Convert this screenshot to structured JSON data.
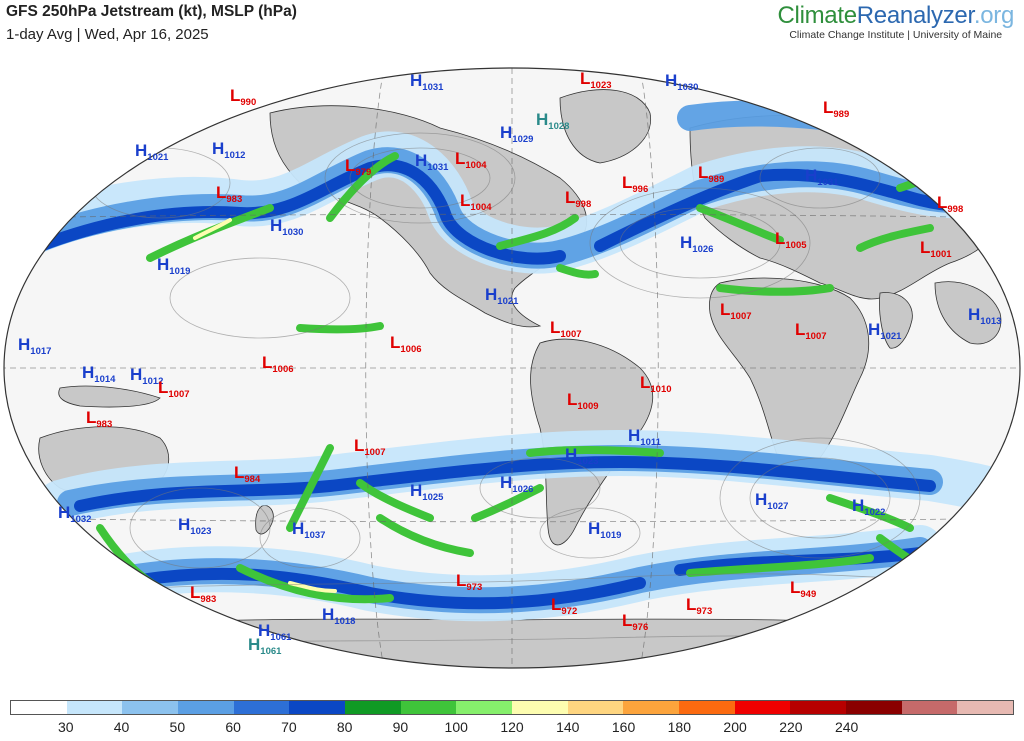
{
  "header": {
    "title": "GFS 250hPa Jetstream (kt), MSLP (hPa)",
    "subtitle": "1-day Avg | Wed, Apr 16, 2025"
  },
  "brand": {
    "logo_part1": "Climate",
    "logo_part2": "Reanalyzer",
    "logo_part3": ".org",
    "subtitle": "Climate Change Institute | University of Maine"
  },
  "colors": {
    "high": "#1a3fcc",
    "low": "#e00000",
    "high_teal": "#2a8a8a",
    "land": "#c8c8c8",
    "ocean": "#f6f6f6"
  },
  "colorbar": {
    "segments": [
      "#ffffff",
      "#c6e6fb",
      "#8cc2ee",
      "#5b9fe4",
      "#2d6fd6",
      "#0b47c4",
      "#109a24",
      "#3fc43a",
      "#86ef6c",
      "#fdfdb0",
      "#fed580",
      "#fca43c",
      "#fb6a10",
      "#ef0000",
      "#b70000",
      "#8a0000",
      "#c66a6a",
      "#e7b9b2"
    ],
    "ticks": [
      "30",
      "40",
      "50",
      "60",
      "70",
      "80",
      "90",
      "100",
      "120",
      "140",
      "160",
      "180",
      "200",
      "220",
      "240"
    ]
  },
  "pressure_centers": [
    {
      "type": "L",
      "value": "990"
    },
    {
      "type": "H",
      "value": "1021"
    },
    {
      "type": "H",
      "value": "1012"
    },
    {
      "type": "L",
      "value": "983"
    },
    {
      "type": "H",
      "value": "1030"
    },
    {
      "type": "H",
      "value": "1019"
    },
    {
      "type": "H",
      "value": "1031"
    },
    {
      "type": "L",
      "value": "979"
    },
    {
      "type": "H",
      "value": "1031"
    },
    {
      "type": "L",
      "value": "1004"
    },
    {
      "type": "L",
      "value": "1004"
    },
    {
      "type": "H",
      "value": "1028"
    },
    {
      "type": "H",
      "value": "1029"
    },
    {
      "type": "L",
      "value": "1023"
    },
    {
      "type": "H",
      "value": "1030"
    },
    {
      "type": "L",
      "value": "989"
    },
    {
      "type": "L",
      "value": "989"
    },
    {
      "type": "L",
      "value": "996"
    },
    {
      "type": "L",
      "value": "998"
    },
    {
      "type": "H",
      "value": "1031"
    },
    {
      "type": "L",
      "value": "998"
    },
    {
      "type": "H",
      "value": "1026"
    },
    {
      "type": "L",
      "value": "1005"
    },
    {
      "type": "L",
      "value": "1001"
    },
    {
      "type": "H",
      "value": "1021"
    },
    {
      "type": "H",
      "value": "1013"
    },
    {
      "type": "L",
      "value": "1007"
    },
    {
      "type": "L",
      "value": "1007"
    },
    {
      "type": "H",
      "value": "1021"
    },
    {
      "type": "L",
      "value": "1007"
    },
    {
      "type": "H",
      "value": "1017"
    },
    {
      "type": "H",
      "value": "1014"
    },
    {
      "type": "H",
      "value": "1012"
    },
    {
      "type": "L",
      "value": "1007"
    },
    {
      "type": "L",
      "value": "1006"
    },
    {
      "type": "L",
      "value": "1006"
    },
    {
      "type": "L",
      "value": "983"
    },
    {
      "type": "L",
      "value": "1010"
    },
    {
      "type": "L",
      "value": "1009"
    },
    {
      "type": "H",
      "value": "1011"
    },
    {
      "type": "H",
      "value": "1023"
    },
    {
      "type": "L",
      "value": "1007"
    },
    {
      "type": "L",
      "value": "984"
    },
    {
      "type": "H",
      "value": "1025"
    },
    {
      "type": "H",
      "value": "1026"
    },
    {
      "type": "H",
      "value": "1027"
    },
    {
      "type": "H",
      "value": "1022"
    },
    {
      "type": "H",
      "value": "1032"
    },
    {
      "type": "H",
      "value": "1023"
    },
    {
      "type": "H",
      "value": "1037"
    },
    {
      "type": "H",
      "value": "1019"
    },
    {
      "type": "L",
      "value": "983"
    },
    {
      "type": "L",
      "value": "973"
    },
    {
      "type": "L",
      "value": "972"
    },
    {
      "type": "L",
      "value": "976"
    },
    {
      "type": "L",
      "value": "973"
    },
    {
      "type": "L",
      "value": "949"
    },
    {
      "type": "H",
      "value": "1018"
    },
    {
      "type": "H",
      "value": "1061"
    },
    {
      "type": "H",
      "value": "1061"
    }
  ]
}
